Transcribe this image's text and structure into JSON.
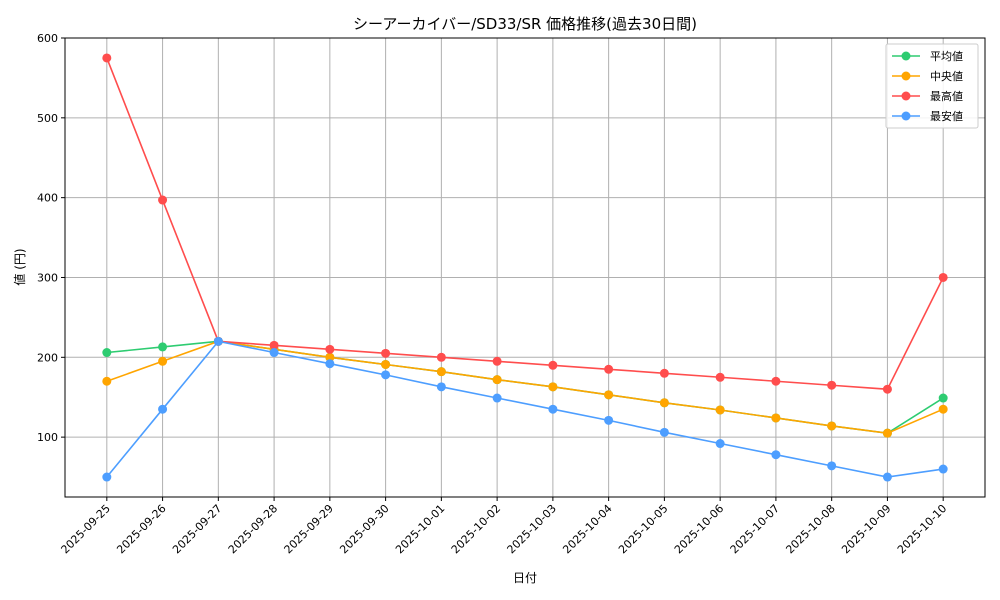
{
  "chart_data": {
    "type": "line",
    "title": "シーアーカイバー/SD33/SR 価格推移(過去30日間)",
    "xlabel": "日付",
    "ylabel": "値 (円)",
    "categories": [
      "2025-09-25",
      "2025-09-26",
      "2025-09-27",
      "2025-09-28",
      "2025-09-29",
      "2025-09-30",
      "2025-10-01",
      "2025-10-02",
      "2025-10-03",
      "2025-10-04",
      "2025-10-05",
      "2025-10-06",
      "2025-10-07",
      "2025-10-08",
      "2025-10-09",
      "2025-10-10"
    ],
    "ylim": [
      25,
      600
    ],
    "yticks": [
      100,
      200,
      300,
      400,
      500,
      600
    ],
    "grid": true,
    "legend_position": "top-right",
    "series": [
      {
        "name": "平均値",
        "color": "#2ecc71",
        "values": [
          206,
          213,
          220,
          210,
          200,
          191,
          182,
          172,
          163,
          153,
          143,
          134,
          124,
          114,
          105,
          149
        ]
      },
      {
        "name": "中央値",
        "color": "#ffa500",
        "values": [
          170,
          195,
          220,
          210,
          200,
          191,
          182,
          172,
          163,
          153,
          143,
          134,
          124,
          114,
          105,
          135
        ]
      },
      {
        "name": "最高値",
        "color": "#ff4d4d",
        "values": [
          575,
          397,
          220,
          215,
          210,
          205,
          200,
          195,
          190,
          185,
          180,
          175,
          170,
          165,
          160,
          300
        ]
      },
      {
        "name": "最安値",
        "color": "#4d9eff",
        "values": [
          50,
          135,
          220,
          206,
          192,
          178,
          163,
          149,
          135,
          121,
          106,
          92,
          78,
          64,
          50,
          60
        ]
      }
    ]
  }
}
